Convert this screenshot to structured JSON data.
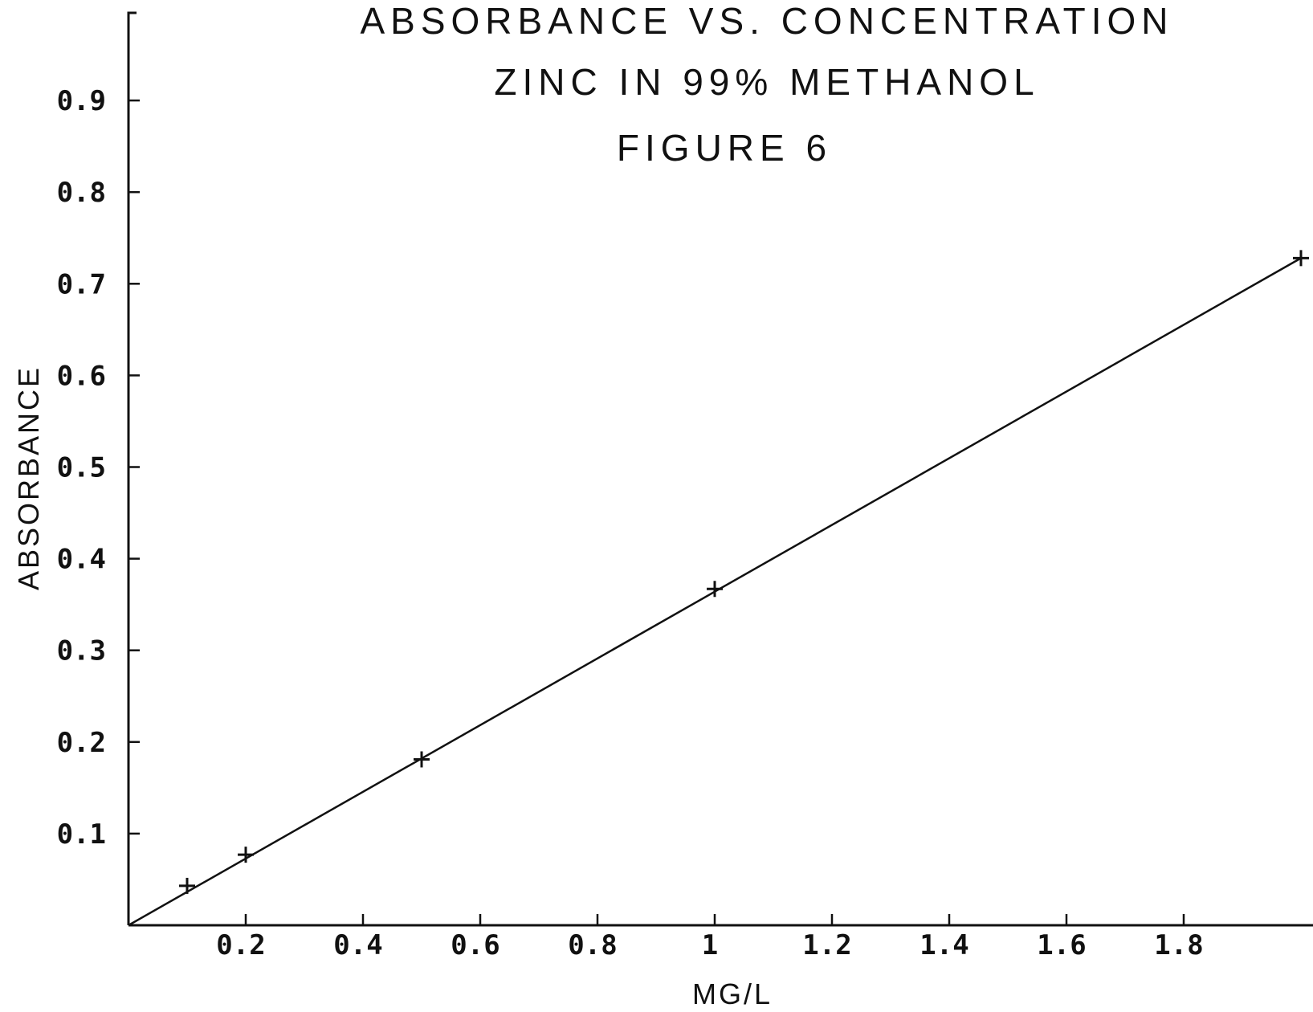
{
  "chart_data": {
    "type": "scatter",
    "title_lines": [
      "ABSORBANCE  VS. CONCENTRATION",
      "ZINC  IN  99%  METHANOL",
      "FIGURE  6"
    ],
    "xlabel": "MG/L",
    "ylabel": "ABSORBANCE",
    "xlim": [
      0,
      2.0
    ],
    "ylim": [
      0,
      0.9
    ],
    "x_ticks": [
      "0.2",
      "0.4",
      "0.6",
      "0.8",
      "1",
      "1.2",
      "1.4",
      "1.6",
      "1.8"
    ],
    "y_ticks": [
      "0.1",
      "0.2",
      "0.3",
      "0.4",
      "0.5",
      "0.6",
      "0.7",
      "0.8",
      "0.9"
    ],
    "points": [
      {
        "x": 0.1,
        "y": 0.043
      },
      {
        "x": 0.2,
        "y": 0.077
      },
      {
        "x": 0.5,
        "y": 0.181
      },
      {
        "x": 1.0,
        "y": 0.367
      },
      {
        "x": 2.0,
        "y": 0.728
      }
    ],
    "fit_line": {
      "x": [
        0,
        2.0
      ],
      "y": [
        0,
        0.728
      ]
    },
    "grid": false,
    "legend": "none"
  }
}
